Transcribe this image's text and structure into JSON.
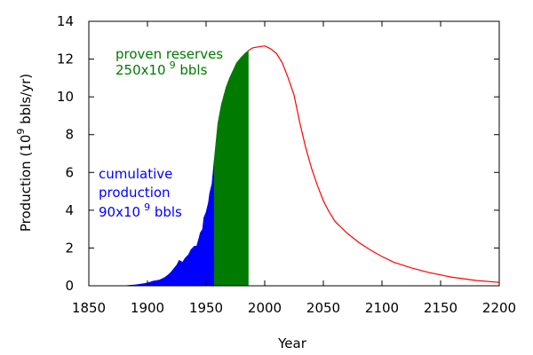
{
  "chart_data": {
    "type": "area",
    "xlabel": "Year",
    "ylabel": "Production (10 9 bbls/yr)",
    "ylabel_parts": {
      "before": "Production (10",
      "sup": "9",
      "after": " bbls/yr)"
    },
    "xlim": [
      1850,
      2200
    ],
    "ylim": [
      0,
      14
    ],
    "xticks": [
      1850,
      1900,
      1950,
      2000,
      2050,
      2100,
      2150,
      2200
    ],
    "yticks": [
      0,
      2,
      4,
      6,
      8,
      10,
      12,
      14
    ],
    "grid": false,
    "annotations": {
      "proven": {
        "line1": "proven reserves",
        "line2_before": "250x10",
        "line2_sup": "9",
        "line2_after": " bbls",
        "color": "#007a00"
      },
      "cumulative": {
        "line1": "cumulative",
        "line2": "production",
        "line3_before": "90x10",
        "line3_sup": "9",
        "line3_after": " bbls",
        "color": "#0000ff"
      }
    },
    "series": [
      {
        "name": "cumulative production",
        "style": "filled-area",
        "color": "#0000ff",
        "x": [
          1880,
          1885,
          1890,
          1895,
          1900,
          1905,
          1910,
          1915,
          1918,
          1920,
          1925,
          1927,
          1930,
          1932,
          1935,
          1937,
          1940,
          1942,
          1944,
          1945,
          1947,
          1948,
          1950,
          1952,
          1953,
          1955,
          1957
        ],
        "y": [
          0.0,
          0.03,
          0.05,
          0.1,
          0.15,
          0.25,
          0.3,
          0.45,
          0.6,
          0.72,
          1.1,
          1.35,
          1.25,
          1.45,
          1.65,
          1.9,
          2.1,
          2.1,
          2.55,
          2.8,
          3.0,
          3.6,
          3.9,
          4.4,
          4.9,
          5.4,
          6.7
        ]
      },
      {
        "name": "proven reserves",
        "style": "filled-area",
        "color": "#007a00",
        "x": [
          1957,
          1960,
          1963,
          1967,
          1970,
          1973,
          1976,
          1980,
          1983,
          1986
        ],
        "y": [
          6.7,
          8.6,
          9.6,
          10.5,
          11.0,
          11.4,
          11.8,
          12.1,
          12.3,
          12.45
        ]
      },
      {
        "name": "projection",
        "style": "line",
        "color": "#ff0000",
        "x": [
          1986,
          1990,
          1995,
          2000,
          2005,
          2010,
          2015,
          2020,
          2025,
          2030,
          2035,
          2040,
          2045,
          2050,
          2055,
          2060,
          2065,
          2070,
          2080,
          2090,
          2100,
          2110,
          2125,
          2140,
          2160,
          2180,
          2200
        ],
        "y": [
          12.45,
          12.6,
          12.65,
          12.7,
          12.55,
          12.3,
          11.8,
          11.0,
          10.1,
          8.6,
          7.3,
          6.2,
          5.3,
          4.5,
          3.9,
          3.4,
          3.1,
          2.8,
          2.3,
          1.9,
          1.55,
          1.25,
          0.95,
          0.7,
          0.45,
          0.28,
          0.18
        ]
      }
    ]
  }
}
